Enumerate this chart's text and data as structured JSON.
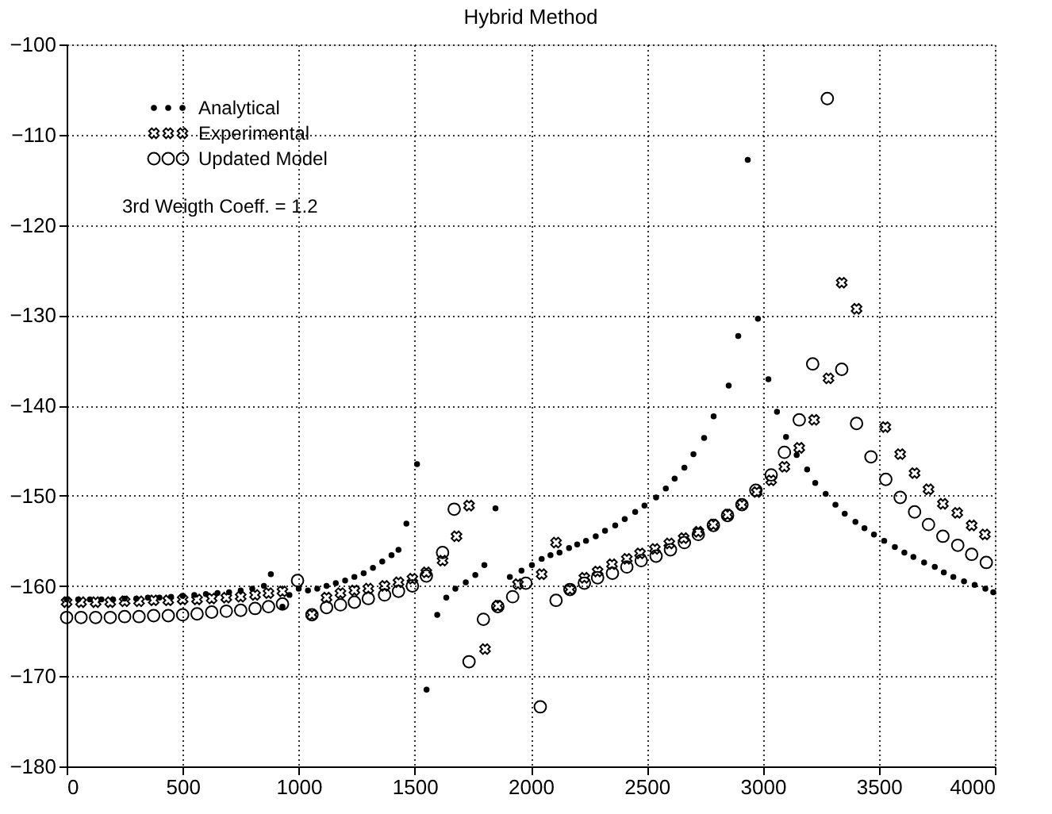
{
  "chart_data": {
    "type": "scatter",
    "title": "Hybrid Method",
    "xlim": [
      0,
      4000
    ],
    "xticks": [
      0,
      500,
      1000,
      1500,
      2000,
      2500,
      3000,
      3500,
      4000
    ],
    "ylim": [
      -180,
      -100
    ],
    "yticks": [
      -180,
      -170,
      -160,
      -150,
      -140,
      -130,
      -120,
      -110,
      -100
    ],
    "grid": true,
    "legend": "top left",
    "annotations": [
      "3rd Weigth Coeff. = 1.2"
    ],
    "series": [
      {
        "name": "Analytical",
        "color": "#000000",
        "marker": "circle",
        "x": [
          0,
          50,
          100,
          150,
          200,
          250,
          300,
          350,
          400,
          450,
          500,
          550,
          600,
          650,
          700,
          750,
          800,
          850,
          880,
          930,
          960,
          1000,
          1040,
          1080,
          1120,
          1160,
          1200,
          1240,
          1280,
          1320,
          1360,
          1400,
          1430,
          1464,
          1510,
          1551,
          1597,
          1636,
          1675,
          1720,
          1761,
          1800,
          1848,
          1910,
          1960,
          2005,
          2047,
          2085,
          2124,
          2165,
          2200,
          2238,
          2280,
          2320,
          2364,
          2405,
          2450,
          2490,
          2540,
          2582,
          2620,
          2662,
          2701,
          2747,
          2788,
          2853,
          2894,
          2935,
          2979,
          3024,
          3061,
          3100,
          3146,
          3191,
          3226,
          3271,
          3313,
          3353,
          3399,
          3438,
          3479,
          3523,
          3569,
          3610,
          3649,
          3695,
          3741,
          3780,
          3821,
          3867,
          3913,
          3959,
          3993
        ],
        "values": [
          -161.5,
          -161.5,
          -161.5,
          -161.5,
          -161.5,
          -161.4,
          -161.4,
          -161.3,
          -161.3,
          -161.2,
          -161.1,
          -161.0,
          -160.9,
          -160.8,
          -160.7,
          -160.5,
          -160.3,
          -160.0,
          -158.7,
          -162.3,
          -161.0,
          -160.3,
          -160.5,
          -160.3,
          -160.0,
          -159.7,
          -159.4,
          -159.0,
          -158.6,
          -158.0,
          -157.3,
          -156.6,
          -156.0,
          -153.1,
          -146.5,
          -171.5,
          -163.2,
          -161.3,
          -160.3,
          -159.6,
          -158.8,
          -157.7,
          -151.4,
          -159.0,
          -158.3,
          -157.7,
          -157.0,
          -156.6,
          -156.3,
          -155.8,
          -155.4,
          -155.0,
          -154.5,
          -153.9,
          -153.3,
          -152.6,
          -151.8,
          -151.1,
          -150.2,
          -149.2,
          -148.1,
          -146.9,
          -145.4,
          -143.6,
          -141.2,
          -137.8,
          -132.3,
          -112.8,
          -130.4,
          -137.1,
          -140.7,
          -143.5,
          -145.5,
          -147.1,
          -148.6,
          -149.8,
          -151.0,
          -152.0,
          -152.9,
          -153.6,
          -154.3,
          -155.0,
          -155.7,
          -156.3,
          -156.8,
          -157.4,
          -157.9,
          -158.5,
          -159.0,
          -159.5,
          -159.9,
          -160.3,
          -160.7
        ]
      },
      {
        "name": "Experimental",
        "color": "#000000",
        "marker": "cross",
        "x": [
          0,
          62,
          125,
          188,
          250,
          312,
          375,
          438,
          500,
          562,
          625,
          688,
          750,
          812,
          870,
          930,
          1057,
          1120,
          1180,
          1240,
          1300,
          1370,
          1430,
          1490,
          1550,
          1620,
          1680,
          1734,
          1803,
          1858,
          1945,
          2047,
          2109,
          2169,
          2231,
          2288,
          2350,
          2414,
          2471,
          2535,
          2597,
          2659,
          2722,
          2787,
          2848,
          2910,
          2974,
          3036,
          3093,
          3157,
          3221,
          3283,
          3340,
          3404,
          3528,
          3592,
          3654,
          3714,
          3776,
          3838,
          3900,
          3957
        ],
        "values": [
          -161.8,
          -161.8,
          -161.8,
          -161.8,
          -161.7,
          -161.7,
          -161.6,
          -161.6,
          -161.5,
          -161.5,
          -161.4,
          -161.3,
          -161.2,
          -161.0,
          -160.8,
          -160.6,
          -163.2,
          -161.3,
          -160.8,
          -160.5,
          -160.3,
          -160.0,
          -159.6,
          -159.2,
          -158.5,
          -157.2,
          -154.5,
          -151.1,
          -167.0,
          -162.2,
          -159.8,
          -158.7,
          -155.2,
          -160.4,
          -159.1,
          -158.4,
          -157.6,
          -157.0,
          -156.4,
          -155.9,
          -155.3,
          -154.7,
          -154.0,
          -153.2,
          -152.1,
          -151.0,
          -149.6,
          -148.3,
          -146.8,
          -144.7,
          -141.6,
          -137.0,
          -126.4,
          -129.3,
          -142.4,
          -145.4,
          -147.5,
          -149.3,
          -150.9,
          -151.9,
          -153.3,
          -154.3
        ]
      },
      {
        "name": "Updated Model",
        "color": "#000000",
        "marker": "circle",
        "x": [
          0,
          62,
          125,
          188,
          250,
          312,
          375,
          438,
          500,
          562,
          625,
          688,
          750,
          812,
          870,
          930,
          995,
          1057,
          1120,
          1180,
          1240,
          1300,
          1370,
          1430,
          1490,
          1550,
          1620,
          1670,
          1734,
          1796,
          1858,
          1922,
          1979,
          2041,
          2109,
          2169,
          2231,
          2288,
          2352,
          2414,
          2476,
          2540,
          2602,
          2662,
          2722,
          2787,
          2848,
          2910,
          2970,
          3036,
          3093,
          3157,
          3215,
          3278,
          3340,
          3404,
          3466,
          3530,
          3592,
          3654,
          3714,
          3776,
          3840,
          3900,
          3963
        ],
        "values": [
          -163.5,
          -163.5,
          -163.5,
          -163.5,
          -163.4,
          -163.4,
          -163.3,
          -163.3,
          -163.2,
          -163.1,
          -162.9,
          -162.8,
          -162.7,
          -162.5,
          -162.3,
          -162.0,
          -159.4,
          -163.2,
          -162.4,
          -162.1,
          -161.8,
          -161.4,
          -161.0,
          -160.6,
          -160.0,
          -158.9,
          -156.3,
          -151.5,
          -168.4,
          -163.7,
          -162.3,
          -161.2,
          -159.7,
          -173.4,
          -161.6,
          -160.4,
          -159.7,
          -159.1,
          -158.6,
          -157.9,
          -157.2,
          -156.7,
          -156.0,
          -155.2,
          -154.3,
          -153.3,
          -152.2,
          -151.0,
          -149.4,
          -147.7,
          -145.2,
          -141.6,
          -135.4,
          -106.0,
          -136.0,
          -142.0,
          -145.7,
          -148.2,
          -150.2,
          -151.8,
          -153.2,
          -154.5,
          -155.5,
          -156.5,
          -157.4
        ]
      }
    ]
  }
}
